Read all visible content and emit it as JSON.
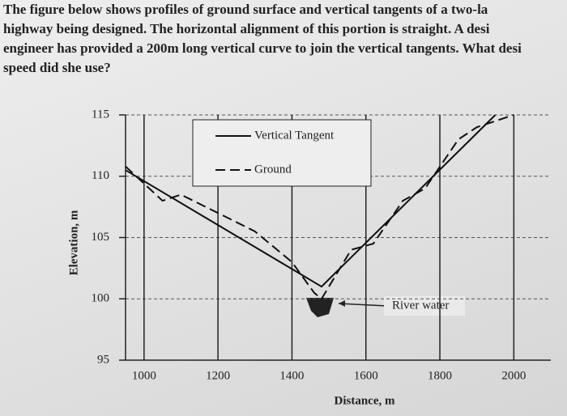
{
  "problem_text": [
    "The figure below shows profiles of ground surface and vertical tangents of a two-la",
    "highway being designed. The horizontal alignment of this portion is straight. A desi",
    "engineer has provided a 200m long vertical curve to join the vertical tangents. What desi",
    "speed did she use?"
  ],
  "chart_data": {
    "type": "line",
    "xlabel": "Distance, m",
    "ylabel": "Elevation, m",
    "xlim": [
      950,
      2100
    ],
    "ylim": [
      95,
      115
    ],
    "xticks": [
      1000,
      1200,
      1400,
      1600,
      1800,
      2000
    ],
    "yticks": [
      95,
      100,
      105,
      110,
      115
    ],
    "grid": true,
    "legend": "top",
    "annotation": "River water",
    "series": [
      {
        "name": "Vertical Tangent",
        "color": "#111111",
        "dash": "solid",
        "x": [
          950,
          1480,
          1950
        ],
        "values": [
          110.5,
          101,
          115
        ]
      },
      {
        "name": "Ground",
        "color": "#111111",
        "dash": "dashed",
        "x": [
          950,
          1050,
          1100,
          1200,
          1300,
          1400,
          1460,
          1480,
          1560,
          1620,
          1700,
          1760,
          1850,
          1900,
          2000
        ],
        "values": [
          110.8,
          108,
          108.5,
          107,
          105.5,
          103,
          100.5,
          100,
          104,
          104.5,
          108,
          109,
          113,
          114,
          115
        ]
      }
    ]
  }
}
